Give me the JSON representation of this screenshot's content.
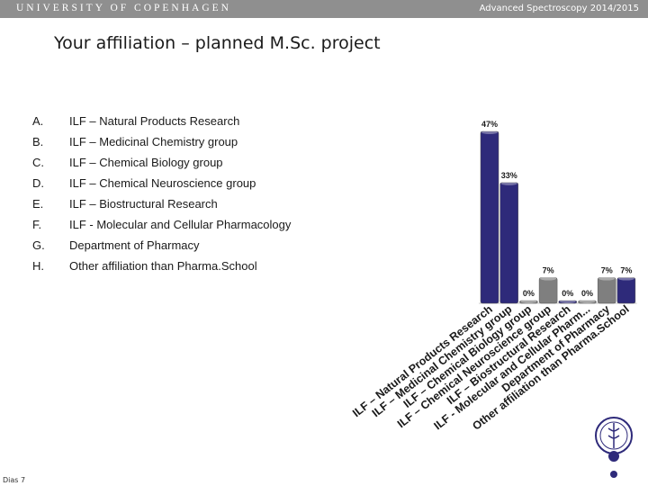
{
  "header": {
    "university": "UNIVERSITY OF COPENHAGEN",
    "course": "Advanced Spectroscopy 2014/2015"
  },
  "slide": {
    "title": "Your affiliation – planned M.Sc. project",
    "options": [
      {
        "letter": "A.",
        "text": "ILF – Natural Products Research"
      },
      {
        "letter": "B.",
        "text": "ILF – Medicinal Chemistry group"
      },
      {
        "letter": "C.",
        "text": "ILF – Chemical Biology group"
      },
      {
        "letter": "D.",
        "text": "ILF – Chemical Neuroscience group"
      },
      {
        "letter": "E.",
        "text": "ILF – Biostructural Research"
      },
      {
        "letter": "F.",
        "text": "ILF - Molecular and Cellular Pharmacology"
      },
      {
        "letter": "G.",
        "text": "Department of Pharmacy"
      },
      {
        "letter": "H.",
        "text": "Other affiliation than Pharma.School"
      }
    ],
    "footer": "Dias 7"
  },
  "chart_data": {
    "type": "bar",
    "categories": [
      "ILF – Natural Products Research",
      "ILF – Medicinal Chemistry group",
      "ILF – Chemical Biology group",
      "ILF – Chemical Neuroscience group",
      "ILF – Biostructural Research",
      "ILF - Molecular and Cellular Pharm...",
      "Department of Pharmacy",
      "Other affiliation than Pharma.School"
    ],
    "values": [
      47,
      33,
      0,
      7,
      0,
      0,
      7,
      7
    ],
    "data_labels": [
      "47%",
      "33%",
      "0%",
      "7%",
      "0%",
      "0%",
      "7%",
      "7%"
    ],
    "unit": "%",
    "ylim": [
      0,
      47
    ],
    "grid": false,
    "legend": "none",
    "colors": {
      "highlight": "#2e2a7a",
      "neutral": "#7f7f7f"
    },
    "bar_color_kind": [
      "highlight",
      "highlight",
      "neutral",
      "neutral",
      "highlight",
      "neutral",
      "neutral",
      "highlight"
    ]
  },
  "logo": {
    "icon": "university-seal-icon"
  }
}
